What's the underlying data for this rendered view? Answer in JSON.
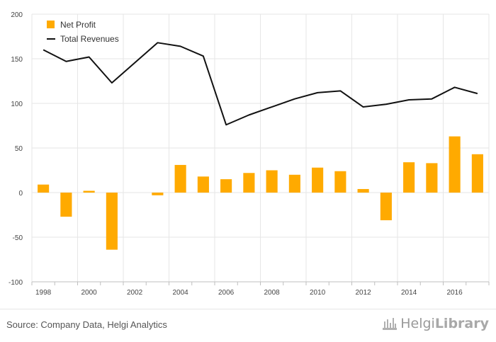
{
  "chart_data": {
    "type": "bar",
    "categories": [
      "1998",
      "1999",
      "2000",
      "2001",
      "2002",
      "2003",
      "2004",
      "2005",
      "2006",
      "2007",
      "2008",
      "2009",
      "2010",
      "2011",
      "2012",
      "2013",
      "2014",
      "2015",
      "2016",
      "2017"
    ],
    "x_tick_labels": [
      "1998",
      "2000",
      "2002",
      "2004",
      "2006",
      "2008",
      "2010",
      "2012",
      "2014",
      "2016"
    ],
    "series": [
      {
        "name": "Net Profit",
        "kind": "bar",
        "color": "#ffaa00",
        "values": [
          9,
          -27,
          2,
          -64,
          null,
          -3,
          31,
          18,
          15,
          22,
          25,
          20,
          28,
          24,
          4,
          -31,
          34,
          33,
          63,
          43
        ]
      },
      {
        "name": "Total Revenues",
        "kind": "line",
        "color": "#111111",
        "values": [
          160,
          147,
          152,
          123,
          null,
          168,
          164,
          153,
          76,
          87,
          96,
          105,
          112,
          114,
          96,
          99,
          104,
          105,
          118,
          111
        ]
      }
    ],
    "ylim": [
      -100,
      200
    ],
    "yticks": [
      200,
      150,
      100,
      50,
      0,
      -50,
      -100
    ],
    "ytick_labels": [
      "200",
      "150",
      "100",
      "50",
      "0",
      "-50",
      "-100"
    ],
    "legend": {
      "position": "top-left",
      "entries": [
        "Net Profit",
        "Total Revenues"
      ]
    },
    "grid": true,
    "title": "",
    "xlabel": "",
    "ylabel": ""
  },
  "footer": {
    "source": "Source: Company Data, Helgi Analytics",
    "brand_name": "Helgi",
    "brand_suffix": "Library"
  }
}
